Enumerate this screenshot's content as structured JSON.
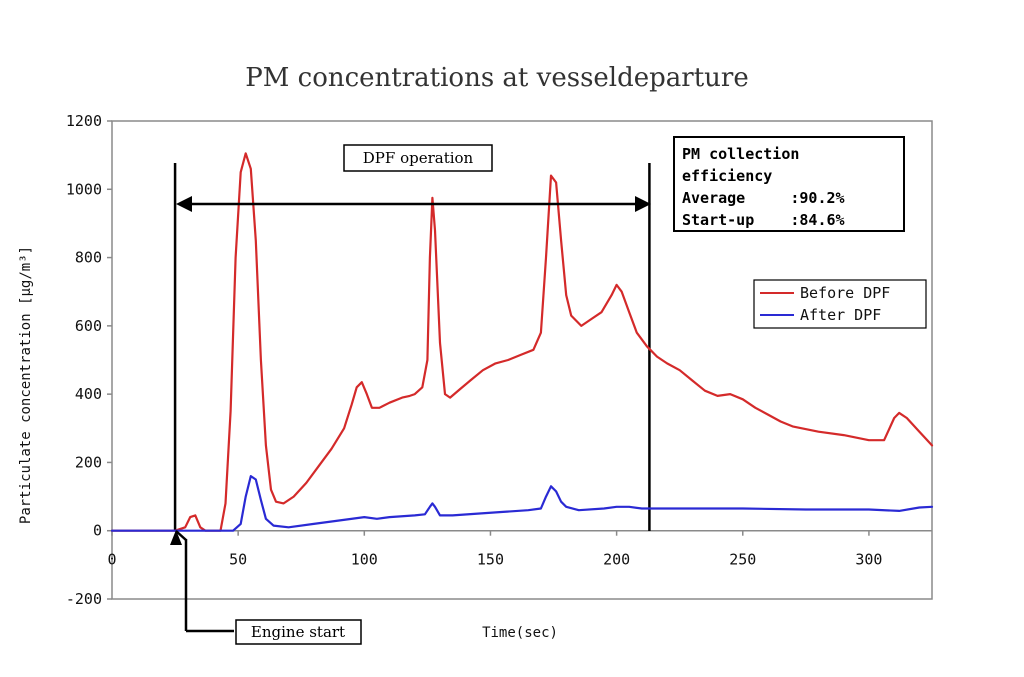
{
  "chart_data": {
    "type": "line",
    "title": "PM concentrations at vesseldeparture",
    "xlabel": "Time(sec)",
    "ylabel": "Particulate concentration [μg/m³]",
    "xlim": [
      0,
      325
    ],
    "ylim": [
      -200,
      1200
    ],
    "xticks": [
      0,
      50,
      100,
      150,
      200,
      250,
      300
    ],
    "yticks": [
      -200,
      0,
      200,
      400,
      600,
      800,
      1000,
      1200
    ],
    "xtick_labels": [
      "0",
      "50",
      "100",
      "150",
      "200",
      "250",
      "300"
    ],
    "ytick_labels": [
      "-200",
      "0",
      "200",
      "400",
      "600",
      "800",
      "1000",
      "1200"
    ],
    "grid": false,
    "legend_position": "right",
    "series": [
      {
        "name": "Before DPF",
        "color": "#d42a2a",
        "points": [
          [
            0,
            0
          ],
          [
            25,
            0
          ],
          [
            29,
            10
          ],
          [
            31,
            40
          ],
          [
            33,
            45
          ],
          [
            35,
            10
          ],
          [
            37,
            0
          ],
          [
            43,
            0
          ],
          [
            45,
            80
          ],
          [
            47,
            350
          ],
          [
            49,
            800
          ],
          [
            51,
            1050
          ],
          [
            53,
            1105
          ],
          [
            55,
            1060
          ],
          [
            57,
            850
          ],
          [
            59,
            500
          ],
          [
            61,
            250
          ],
          [
            63,
            120
          ],
          [
            65,
            85
          ],
          [
            68,
            80
          ],
          [
            72,
            100
          ],
          [
            77,
            140
          ],
          [
            82,
            190
          ],
          [
            87,
            240
          ],
          [
            92,
            300
          ],
          [
            95,
            370
          ],
          [
            97,
            420
          ],
          [
            99,
            435
          ],
          [
            101,
            400
          ],
          [
            103,
            360
          ],
          [
            106,
            360
          ],
          [
            110,
            375
          ],
          [
            115,
            390
          ],
          [
            118,
            395
          ],
          [
            120,
            400
          ],
          [
            123,
            420
          ],
          [
            125,
            500
          ],
          [
            126,
            800
          ],
          [
            127,
            975
          ],
          [
            128,
            880
          ],
          [
            130,
            550
          ],
          [
            132,
            400
          ],
          [
            134,
            390
          ],
          [
            138,
            415
          ],
          [
            142,
            440
          ],
          [
            147,
            470
          ],
          [
            152,
            490
          ],
          [
            157,
            500
          ],
          [
            162,
            515
          ],
          [
            167,
            530
          ],
          [
            170,
            580
          ],
          [
            172,
            800
          ],
          [
            174,
            1040
          ],
          [
            176,
            1020
          ],
          [
            178,
            850
          ],
          [
            180,
            690
          ],
          [
            182,
            630
          ],
          [
            186,
            600
          ],
          [
            190,
            620
          ],
          [
            194,
            640
          ],
          [
            198,
            690
          ],
          [
            200,
            720
          ],
          [
            202,
            700
          ],
          [
            205,
            640
          ],
          [
            208,
            580
          ],
          [
            212,
            540
          ],
          [
            216,
            510
          ],
          [
            220,
            490
          ],
          [
            225,
            470
          ],
          [
            230,
            440
          ],
          [
            235,
            410
          ],
          [
            240,
            395
          ],
          [
            245,
            400
          ],
          [
            250,
            385
          ],
          [
            255,
            360
          ],
          [
            260,
            340
          ],
          [
            265,
            320
          ],
          [
            270,
            305
          ],
          [
            280,
            290
          ],
          [
            290,
            280
          ],
          [
            300,
            265
          ],
          [
            306,
            265
          ],
          [
            310,
            330
          ],
          [
            312,
            345
          ],
          [
            315,
            330
          ],
          [
            320,
            290
          ],
          [
            325,
            250
          ]
        ]
      },
      {
        "name": "After DPF",
        "color": "#2a2ad4",
        "points": [
          [
            0,
            0
          ],
          [
            40,
            0
          ],
          [
            48,
            0
          ],
          [
            51,
            20
          ],
          [
            53,
            100
          ],
          [
            55,
            160
          ],
          [
            57,
            150
          ],
          [
            59,
            90
          ],
          [
            61,
            35
          ],
          [
            64,
            15
          ],
          [
            70,
            10
          ],
          [
            80,
            20
          ],
          [
            90,
            30
          ],
          [
            100,
            40
          ],
          [
            105,
            35
          ],
          [
            110,
            40
          ],
          [
            120,
            45
          ],
          [
            124,
            48
          ],
          [
            126,
            70
          ],
          [
            127,
            80
          ],
          [
            128,
            70
          ],
          [
            130,
            45
          ],
          [
            135,
            45
          ],
          [
            145,
            50
          ],
          [
            155,
            55
          ],
          [
            165,
            60
          ],
          [
            170,
            65
          ],
          [
            172,
            100
          ],
          [
            174,
            130
          ],
          [
            176,
            115
          ],
          [
            178,
            85
          ],
          [
            180,
            70
          ],
          [
            185,
            60
          ],
          [
            195,
            65
          ],
          [
            200,
            70
          ],
          [
            205,
            70
          ],
          [
            210,
            65
          ],
          [
            225,
            65
          ],
          [
            250,
            65
          ],
          [
            275,
            62
          ],
          [
            300,
            62
          ],
          [
            312,
            58
          ],
          [
            320,
            68
          ],
          [
            325,
            70
          ]
        ]
      }
    ],
    "vertical_lines_x": [
      25,
      213
    ],
    "annotations": {
      "dpf_operation": "DPF operation",
      "engine_start": "Engine start",
      "efficiency_box": [
        "PM collection",
        "efficiency",
        "Average     :90.2%",
        "Start-up    :84.6%"
      ]
    }
  }
}
